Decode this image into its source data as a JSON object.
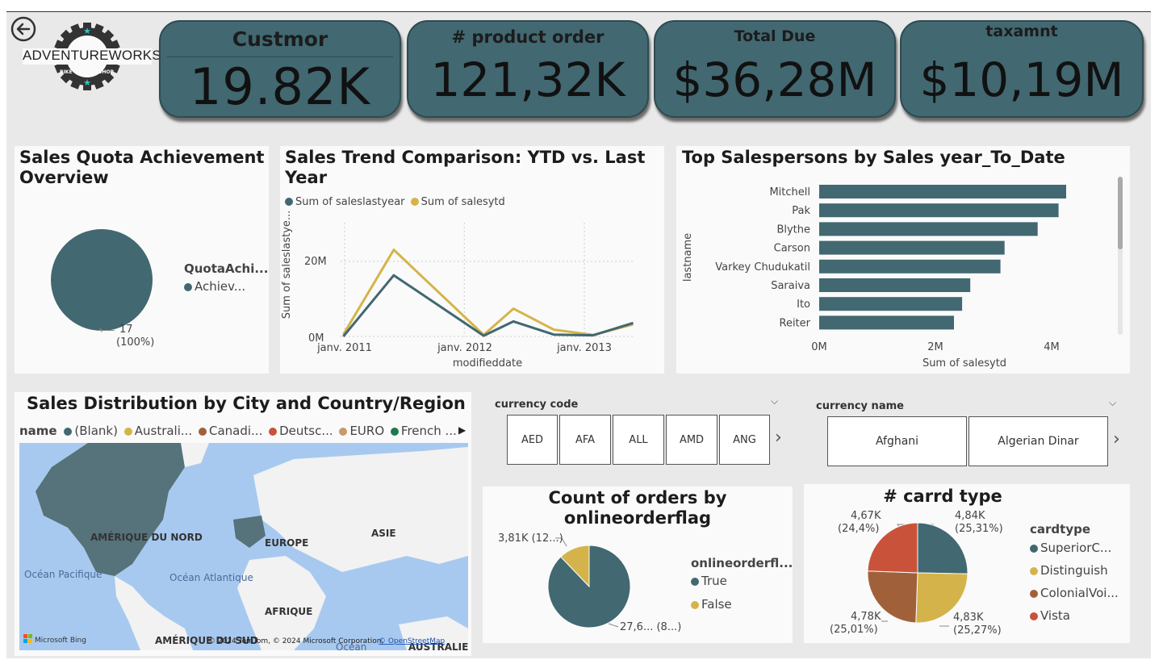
{
  "colors": {
    "teal": "#426871",
    "gold": "#d4b44a",
    "brown": "#a0613a",
    "red": "#c9533a",
    "tan": "#c8996b",
    "green": "#1a7a4c"
  },
  "nav": {
    "back_icon": "back-arrow-icon"
  },
  "logo": {
    "brand": "ADVENTUREWORKS",
    "text_left": "BIKE",
    "text_right": "SHOP"
  },
  "kpis": [
    {
      "label": "Custmor",
      "value": "19.82K"
    },
    {
      "label": "# product order",
      "value": "121,32K"
    },
    {
      "label": "Total Due",
      "value": "$36,28M"
    },
    {
      "label": "taxamnt",
      "value": "$10,19M"
    }
  ],
  "quota": {
    "title": "Sales Quota Achievement Overview",
    "legend_title": "QuotaAchi...",
    "legend_item": "Achiev...",
    "slice_label_value": "17",
    "slice_label_pct": "(100%)"
  },
  "trend": {
    "title": "Sales Trend Comparison: YTD vs. Last Year",
    "legend": [
      "Sum of saleslastyear",
      "Sum of salesytd"
    ],
    "ylabel": "Sum of saleslastye...",
    "xlabel": "modifieddate",
    "yticks": [
      "20M",
      "0M"
    ],
    "xticks": [
      "janv. 2011",
      "janv. 2012",
      "janv. 2013"
    ]
  },
  "salespersons": {
    "title": "Top Salespersons by Sales year_To_Date",
    "ylabel": "lastname",
    "xlabel": "Sum of salesytd",
    "xticks": [
      "0M",
      "2M",
      "4M"
    ],
    "names": [
      "Mitchell",
      "Pak",
      "Blythe",
      "Carson",
      "Varkey Chudukatil",
      "Saraiva",
      "Ito",
      "Reiter"
    ]
  },
  "map": {
    "title": "Sales Distribution by City and Country/Region",
    "legend_title": "name",
    "legend": [
      "(Blank)",
      "Australi...",
      "Canadi...",
      "Deutsc...",
      "EURO",
      "French ..."
    ],
    "labels": {
      "north_america": "AMÉRIQUE DU NORD",
      "europe": "EUROPE",
      "asia": "ASIE",
      "africa": "AFRIQUE",
      "south_america": "AMÉRIQUE DU SUD",
      "pacific": "Océan\nPacifique",
      "atlantic": "Océan\nAtlantique",
      "ocean": "Océan",
      "australia": "AUSTRALIE"
    },
    "attribution": "© 2024 TomTom, © 2024 Microsoft Corporation,",
    "osm": "© OpenStreetMap",
    "bing": "Microsoft Bing"
  },
  "currency_code": {
    "label": "currency code",
    "options": [
      "AED",
      "AFA",
      "ALL",
      "AMD",
      "ANG"
    ]
  },
  "currency_name": {
    "label": "currency name",
    "options": [
      "Afghani",
      "Algerian Dinar"
    ]
  },
  "orders": {
    "title": "Count of orders by onlineorderflag",
    "legend_title": "onlineorderfl...",
    "legend": [
      "True",
      "False"
    ],
    "label_false": "3,81K (12...)",
    "label_true": "27,6... (8...)"
  },
  "cards": {
    "title": "# carrd type",
    "legend_title": "cardtype",
    "legend": [
      "SuperiorC...",
      "Distinguish",
      "ColonialVoi...",
      "Vista"
    ],
    "labels": [
      {
        "value": "4,84K",
        "pct": "(25,31%)"
      },
      {
        "value": "4,83K",
        "pct": "(25,27%)"
      },
      {
        "value": "4,78K",
        "pct": "(25,01%)"
      },
      {
        "value": "4,67K",
        "pct": "(24,4%)"
      }
    ]
  },
  "chart_data": [
    {
      "type": "pie",
      "title": "Sales Quota Achievement Overview",
      "categories": [
        "Achiev..."
      ],
      "values": [
        17
      ]
    },
    {
      "type": "line",
      "title": "Sales Trend Comparison: YTD vs. Last Year",
      "xlabel": "modifieddate",
      "ylabel": "Sum of saleslastye...",
      "x": [
        "2010-12-28",
        "2011-05-31",
        "2012-02-29",
        "2012-05-30",
        "2012-09-30",
        "2013-01-28",
        "2013-05-30"
      ],
      "series": [
        {
          "name": "Sum of saleslastyear",
          "values": [
            0.0,
            16.3,
            0.2,
            4.0,
            0.5,
            0.3,
            3.6
          ]
        },
        {
          "name": "Sum of salesytd",
          "values": [
            0.5,
            23.1,
            0.4,
            7.4,
            1.8,
            0.4,
            3.2
          ]
        }
      ],
      "ylim": [
        0,
        25
      ]
    },
    {
      "type": "bar",
      "title": "Top Salespersons by Sales year_To_Date",
      "xlabel": "Sum of salesytd",
      "ylabel": "lastname",
      "categories": [
        "Mitchell",
        "Pak",
        "Blythe",
        "Carson",
        "Varkey Chudukatil",
        "Saraiva",
        "Ito",
        "Reiter"
      ],
      "values": [
        4.25,
        4.12,
        3.76,
        3.19,
        3.12,
        2.6,
        2.46,
        2.32
      ],
      "xlim": [
        0,
        4.8
      ]
    },
    {
      "type": "pie",
      "title": "Count of orders by onlineorderflag",
      "categories": [
        "True",
        "False"
      ],
      "values": [
        27.66,
        3.81
      ]
    },
    {
      "type": "pie",
      "title": "# carrd type",
      "categories": [
        "SuperiorC...",
        "Distinguish",
        "ColonialVoi...",
        "Vista"
      ],
      "values": [
        4.84,
        4.83,
        4.78,
        4.67
      ]
    }
  ]
}
